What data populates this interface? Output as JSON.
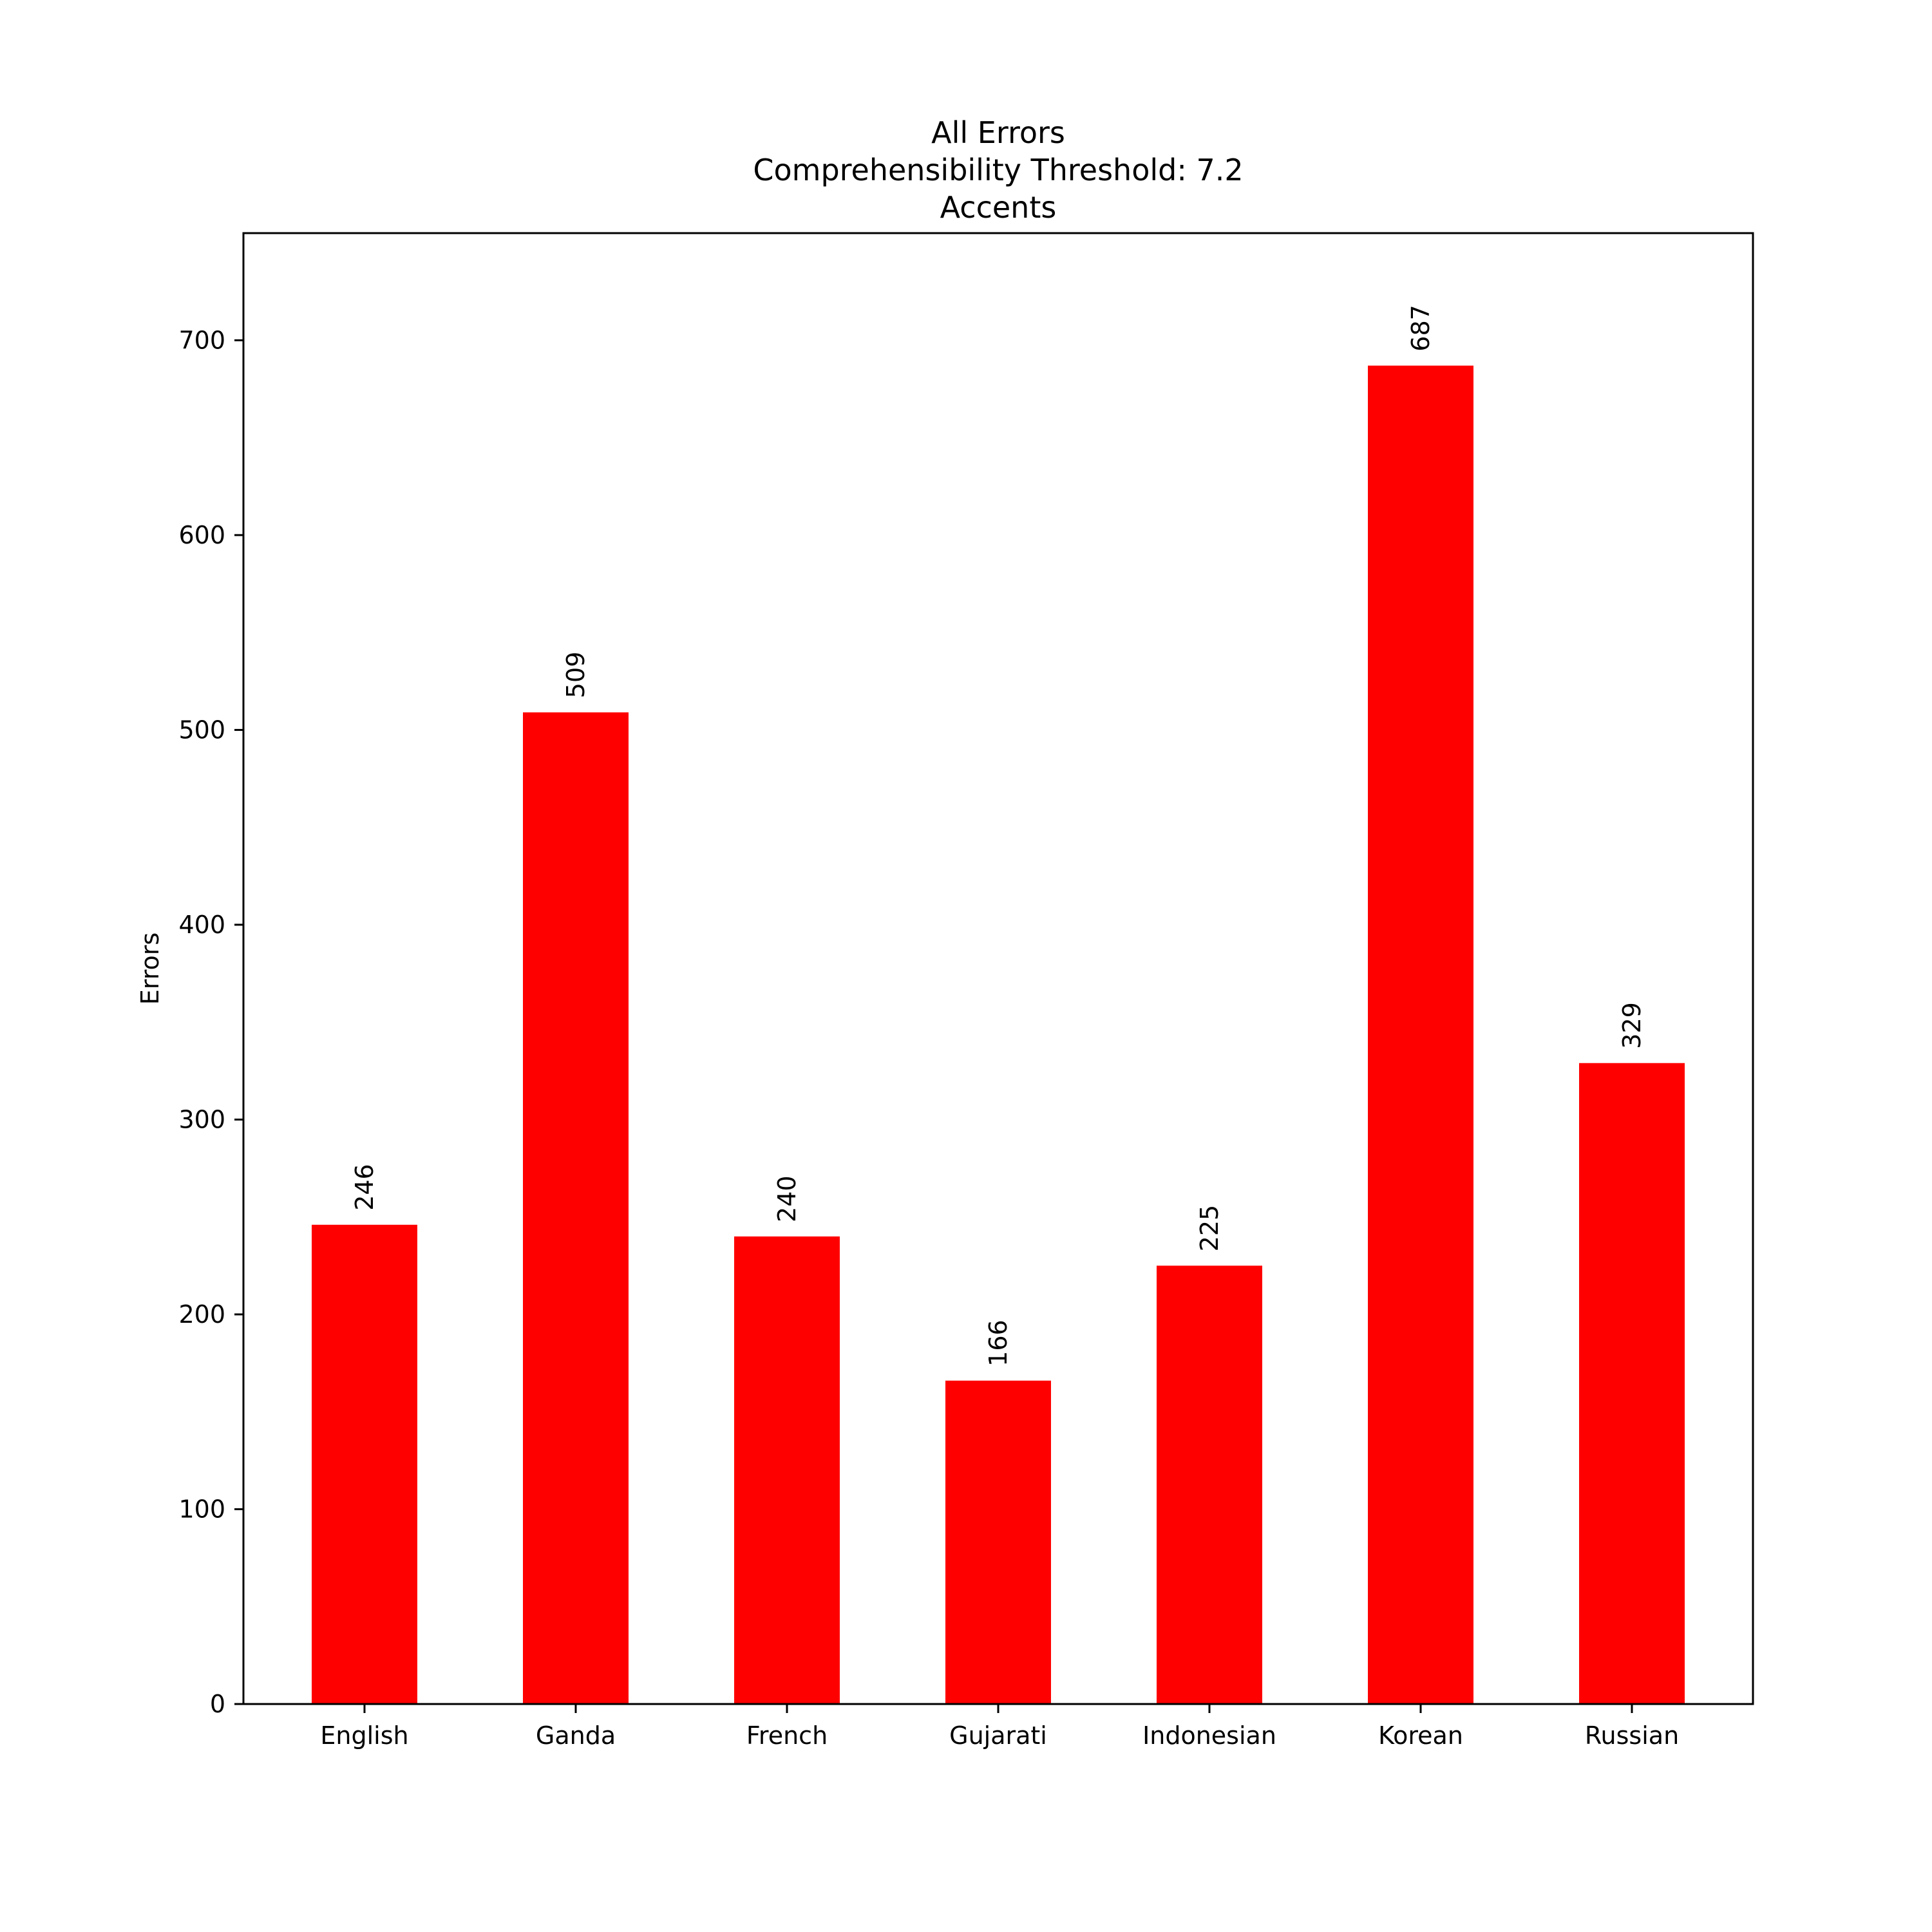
{
  "chart_data": {
    "type": "bar",
    "title_lines": [
      "All Errors",
      "Comprehensibility Threshold: 7.2",
      "Accents"
    ],
    "xlabel": "",
    "ylabel": "Errors",
    "categories": [
      "English",
      "Ganda",
      "French",
      "Gujarati",
      "Indonesian",
      "Korean",
      "Russian"
    ],
    "values": [
      246,
      509,
      240,
      166,
      225,
      687,
      329
    ],
    "ylim": [
      0,
      755
    ],
    "yticks": [
      0,
      100,
      200,
      300,
      400,
      500,
      600,
      700
    ],
    "bar_color": "#ff0000",
    "grid": false,
    "legend": "none"
  }
}
